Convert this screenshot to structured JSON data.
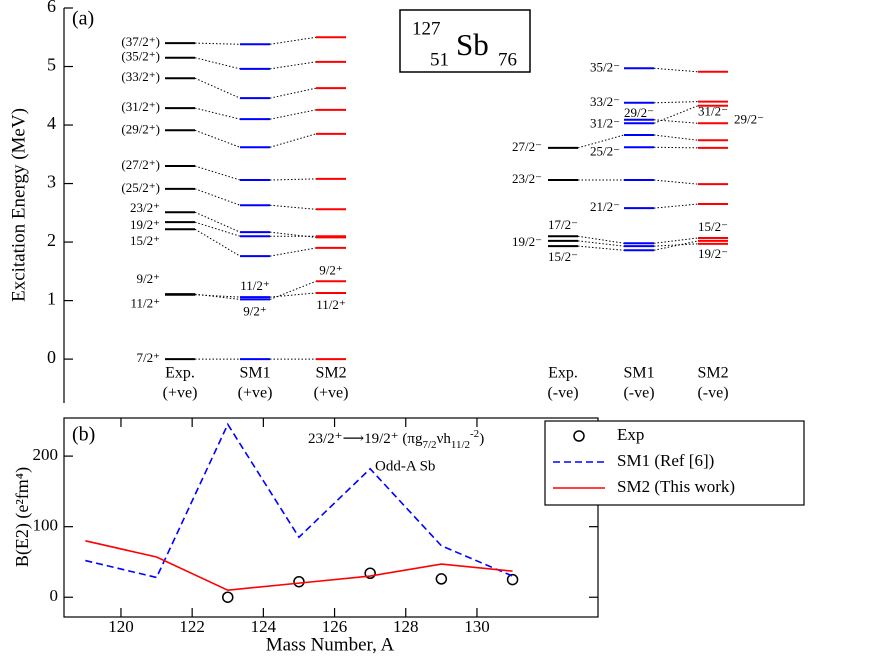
{
  "chart_data": [
    {
      "type": "levels",
      "panel_label": "(a)",
      "ylabel": "Excitation Energy (MeV)",
      "ylim": [
        -0.75,
        6
      ],
      "yticks": [
        0,
        1,
        2,
        3,
        4,
        5,
        6
      ],
      "nucleus": {
        "A": "127",
        "Z": "51",
        "symbol": "Sb",
        "N": "76"
      },
      "columns": [
        {
          "name": "Exp.",
          "parity": "(+ve)",
          "color": "#000000",
          "energies": [
            0,
            1.1,
            1.11,
            2.22,
            2.34,
            2.51,
            2.91,
            3.3,
            3.91,
            4.29,
            4.8,
            5.15,
            5.4
          ],
          "labels": [
            "7/2⁺",
            "11/2⁺",
            "9/2⁺",
            "15/2⁺",
            "19/2⁺",
            "23/2⁺",
            "(25/2⁺)",
            "(27/2⁺)",
            "(29/2⁺)",
            "(31/2⁺)",
            "(33/2⁺)",
            "(35/2⁺)",
            "(37/2⁺)"
          ]
        },
        {
          "name": "SM1",
          "parity": "(+ve)",
          "color": "#0000ff",
          "energies": [
            0,
            1.06,
            1.02,
            1.76,
            2.1,
            2.17,
            2.63,
            3.06,
            3.62,
            4.1,
            4.46,
            4.96,
            5.38
          ],
          "labels": [
            null,
            "11/2⁺",
            "9/2⁺",
            null,
            null,
            null,
            null,
            null,
            null,
            null,
            null,
            null,
            null
          ]
        },
        {
          "name": "SM2",
          "parity": "(+ve)",
          "color": "#ff0000",
          "energies": [
            0,
            1.13,
            1.33,
            1.9,
            2.1,
            2.08,
            2.56,
            3.08,
            3.85,
            4.26,
            4.63,
            5.08,
            5.5
          ],
          "labels": [
            null,
            "11/2⁺",
            "9/2⁺",
            null,
            null,
            null,
            null,
            null,
            null,
            null,
            null,
            null,
            null
          ]
        },
        {
          "name": "Exp.",
          "parity": "(-ve)",
          "color": "#000000",
          "energies": [
            1.93,
            2.02,
            2.1,
            null,
            3.06,
            null,
            3.61,
            null,
            null,
            null,
            null
          ],
          "labels": [
            "15/2⁻",
            "19/2⁻",
            "17/2⁻",
            null,
            "23/2⁻",
            null,
            "27/2⁻",
            null,
            null,
            null,
            null
          ]
        },
        {
          "name": "SM1",
          "parity": "(-ve)",
          "color": "#0000ff",
          "energies": [
            1.86,
            1.93,
            1.98,
            2.58,
            3.06,
            3.62,
            3.83,
            4.09,
            4.03,
            4.38,
            4.97
          ],
          "labels": [
            null,
            null,
            null,
            "21/2⁻",
            null,
            "25/2⁻",
            null,
            "29/2⁻",
            "31/2⁻",
            "33/2⁻",
            "35/2⁻"
          ]
        },
        {
          "name": "SM2",
          "parity": "(-ve)",
          "color": "#ff0000",
          "energies": [
            2.02,
            1.97,
            2.07,
            2.65,
            2.99,
            3.61,
            3.74,
            4.03,
            4.33,
            4.4,
            4.91
          ],
          "labels": [
            "15/2⁻",
            "19/2⁻",
            null,
            null,
            null,
            null,
            null,
            "29/2⁻",
            "31/2⁻",
            null,
            null
          ]
        }
      ]
    },
    {
      "type": "line",
      "panel_label": "(b)",
      "xlabel": "Mass Number, A",
      "ylabel": "B(E2) (e²fm⁴)",
      "annotation": [
        {
          "text": "23/2⁺⟶19/2⁺ (πg"
        },
        {
          "text": "7/2",
          "shift": "sub"
        },
        {
          "text": "νh"
        },
        {
          "text": "11/2",
          "shift": "sub"
        },
        {
          "text": "-2",
          "shift": "sup"
        },
        {
          "text": ")"
        }
      ],
      "note": "Odd-A Sb",
      "x": [
        119,
        121,
        123,
        125,
        127,
        129,
        131
      ],
      "xlim": [
        118.4,
        133.4
      ],
      "xticks": [
        120,
        122,
        124,
        126,
        128,
        130
      ],
      "ylim": [
        -28,
        254
      ],
      "yticks": [
        0,
        100,
        200
      ],
      "legend": "upper right",
      "series": [
        {
          "name": "Exp",
          "color": "#000000",
          "marker": "circle",
          "values": [
            null,
            null,
            0,
            22,
            34,
            26,
            25
          ]
        },
        {
          "name": "SM1 (Ref [6])",
          "color": "#0000ff",
          "style": "dashed",
          "values": [
            52,
            28,
            245,
            85,
            182,
            73,
            30
          ]
        },
        {
          "name": "SM2 (This work)",
          "color": "#ff0000",
          "style": "solid",
          "values": [
            80,
            57,
            10,
            20,
            30,
            47,
            37
          ]
        }
      ]
    }
  ]
}
